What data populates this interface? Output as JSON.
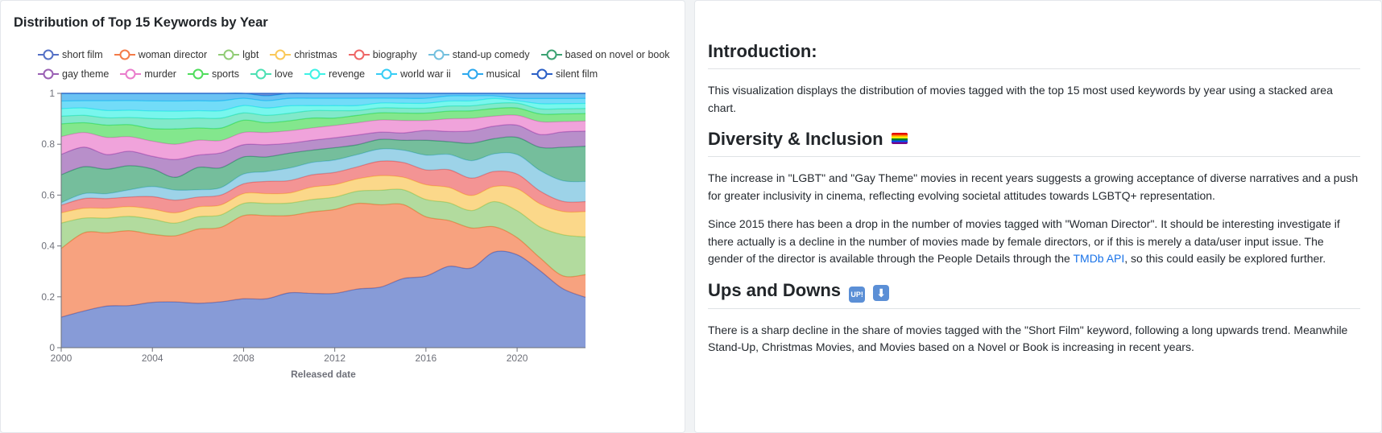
{
  "chart_title": "Distribution of Top 15 Keywords by Year",
  "chart_data": {
    "type": "area",
    "stacked": true,
    "normalized": true,
    "title": "Distribution of Top 15 Keywords by Year",
    "xlabel": "Released date",
    "ylabel": "",
    "xlim": [
      2000,
      2023
    ],
    "ylim": [
      0,
      1
    ],
    "x_ticks": [
      "2000",
      "2004",
      "2008",
      "2012",
      "2016",
      "2020"
    ],
    "y_ticks": [
      "0",
      "0.2",
      "0.4",
      "0.6",
      "0.8",
      "1"
    ],
    "legend_position": "top",
    "x": [
      2000,
      2001,
      2002,
      2003,
      2004,
      2005,
      2006,
      2007,
      2008,
      2009,
      2010,
      2011,
      2012,
      2013,
      2014,
      2015,
      2016,
      2017,
      2018,
      2019,
      2020,
      2021,
      2022,
      2023
    ],
    "series": [
      {
        "name": "short film",
        "color": "#5470c6",
        "values": [
          0.12,
          0.15,
          0.17,
          0.175,
          0.18,
          0.18,
          0.18,
          0.185,
          0.2,
          0.2,
          0.22,
          0.22,
          0.22,
          0.24,
          0.25,
          0.28,
          0.29,
          0.32,
          0.32,
          0.38,
          0.38,
          0.3,
          0.23,
          0.2
        ]
      },
      {
        "name": "woman director",
        "color": "#f47b48",
        "values": [
          0.27,
          0.32,
          0.3,
          0.31,
          0.27,
          0.26,
          0.3,
          0.3,
          0.34,
          0.34,
          0.31,
          0.33,
          0.34,
          0.35,
          0.34,
          0.3,
          0.24,
          0.18,
          0.16,
          0.1,
          0.07,
          0.05,
          0.05,
          0.09
        ]
      },
      {
        "name": "lgbt",
        "color": "#91cc75",
        "values": [
          0.1,
          0.06,
          0.06,
          0.06,
          0.06,
          0.05,
          0.05,
          0.05,
          0.05,
          0.05,
          0.05,
          0.05,
          0.05,
          0.05,
          0.06,
          0.06,
          0.07,
          0.07,
          0.07,
          0.1,
          0.11,
          0.12,
          0.16,
          0.15
        ]
      },
      {
        "name": "christmas",
        "color": "#fac858",
        "values": [
          0.04,
          0.04,
          0.04,
          0.04,
          0.04,
          0.04,
          0.04,
          0.04,
          0.04,
          0.04,
          0.04,
          0.05,
          0.05,
          0.05,
          0.06,
          0.05,
          0.06,
          0.06,
          0.06,
          0.06,
          0.09,
          0.09,
          0.09,
          0.1
        ]
      },
      {
        "name": "biography",
        "color": "#ee6666",
        "values": [
          0.03,
          0.04,
          0.04,
          0.04,
          0.05,
          0.05,
          0.04,
          0.04,
          0.04,
          0.05,
          0.05,
          0.05,
          0.05,
          0.05,
          0.06,
          0.06,
          0.06,
          0.07,
          0.07,
          0.06,
          0.06,
          0.05,
          0.04,
          0.04
        ]
      },
      {
        "name": "stand-up comedy",
        "color": "#73c0de",
        "values": [
          0.01,
          0.02,
          0.02,
          0.03,
          0.04,
          0.04,
          0.03,
          0.03,
          0.04,
          0.04,
          0.05,
          0.05,
          0.05,
          0.05,
          0.05,
          0.05,
          0.06,
          0.06,
          0.07,
          0.07,
          0.08,
          0.08,
          0.08,
          0.08
        ]
      },
      {
        "name": "based on novel or book",
        "color": "#3ba272",
        "values": [
          0.11,
          0.11,
          0.1,
          0.1,
          0.07,
          0.05,
          0.09,
          0.08,
          0.07,
          0.06,
          0.06,
          0.05,
          0.05,
          0.04,
          0.04,
          0.04,
          0.06,
          0.05,
          0.07,
          0.06,
          0.07,
          0.09,
          0.13,
          0.14
        ]
      },
      {
        "name": "gay theme",
        "color": "#9a60b4",
        "values": [
          0.08,
          0.08,
          0.06,
          0.06,
          0.05,
          0.07,
          0.05,
          0.06,
          0.05,
          0.05,
          0.04,
          0.04,
          0.04,
          0.04,
          0.03,
          0.03,
          0.04,
          0.04,
          0.05,
          0.05,
          0.05,
          0.05,
          0.06,
          0.06
        ]
      },
      {
        "name": "murder",
        "color": "#ea7ccc",
        "values": [
          0.07,
          0.06,
          0.07,
          0.06,
          0.06,
          0.06,
          0.06,
          0.05,
          0.05,
          0.05,
          0.05,
          0.05,
          0.05,
          0.05,
          0.05,
          0.05,
          0.04,
          0.05,
          0.05,
          0.04,
          0.04,
          0.05,
          0.04,
          0.04
        ]
      },
      {
        "name": "sports",
        "color": "#4fdd5c",
        "values": [
          0.05,
          0.04,
          0.05,
          0.05,
          0.05,
          0.06,
          0.05,
          0.05,
          0.05,
          0.04,
          0.04,
          0.04,
          0.03,
          0.03,
          0.03,
          0.03,
          0.03,
          0.03,
          0.03,
          0.03,
          0.03,
          0.03,
          0.03,
          0.03
        ]
      },
      {
        "name": "love",
        "color": "#4ce0b3",
        "values": [
          0.03,
          0.03,
          0.03,
          0.03,
          0.04,
          0.04,
          0.04,
          0.04,
          0.03,
          0.03,
          0.03,
          0.03,
          0.03,
          0.02,
          0.02,
          0.02,
          0.02,
          0.02,
          0.02,
          0.02,
          0.02,
          0.02,
          0.02,
          0.02
        ]
      },
      {
        "name": "revenge",
        "color": "#3ef2e6",
        "values": [
          0.03,
          0.03,
          0.03,
          0.03,
          0.03,
          0.03,
          0.03,
          0.03,
          0.03,
          0.03,
          0.03,
          0.02,
          0.02,
          0.02,
          0.02,
          0.02,
          0.02,
          0.02,
          0.02,
          0.02,
          0.01,
          0.02,
          0.02,
          0.02
        ]
      },
      {
        "name": "world war ii",
        "color": "#36cdf5",
        "values": [
          0.03,
          0.03,
          0.04,
          0.04,
          0.04,
          0.04,
          0.04,
          0.04,
          0.03,
          0.03,
          0.03,
          0.03,
          0.03,
          0.03,
          0.02,
          0.02,
          0.02,
          0.02,
          0.02,
          0.01,
          0.01,
          0.02,
          0.02,
          0.02
        ]
      },
      {
        "name": "musical",
        "color": "#2ba8ee",
        "values": [
          0.03,
          0.03,
          0.03,
          0.03,
          0.03,
          0.03,
          0.03,
          0.03,
          0.02,
          0.02,
          0.02,
          0.02,
          0.02,
          0.02,
          0.02,
          0.02,
          0.02,
          0.01,
          0.01,
          0.01,
          0.02,
          0.02,
          0.02,
          0.02
        ]
      },
      {
        "name": "silent film",
        "color": "#2a5fc6",
        "values": [
          0.0,
          0.0,
          0.0,
          0.0,
          0.0,
          0.0,
          0.0,
          0.0,
          0.0,
          0.01,
          0.0,
          0.0,
          0.0,
          0.0,
          0.0,
          0.0,
          0.0,
          0.0,
          0.0,
          0.0,
          0.0,
          0.0,
          0.0,
          0.0
        ]
      }
    ]
  },
  "article": {
    "intro_heading": "Introduction:",
    "intro_text": "This visualization displays the distribution of movies tagged with the top 15 most used keywords by year using a stacked area chart.",
    "diversity_heading": "Diversity & Inclusion",
    "diversity_p1": "The increase in \"LGBT\" and \"Gay Theme\" movies in recent years suggests a growing acceptance of diverse narratives and a push for greater inclusivity in cinema, reflecting evolving societal attitudes towards LGBTQ+ representation.",
    "diversity_p2_before": "Since 2015 there has been a drop in the number of movies tagged with \"Woman Director\". It should be interesting investigate if there actually is a decline in the number of movies made by female directors, or if this is merely a data/user input issue. The gender of the director is available through the People Details through the ",
    "diversity_p2_link": "TMDb API",
    "diversity_p2_after": ", so this could easily be explored further.",
    "ups_heading": "Ups and Downs",
    "ups_emoji_up": "UP!",
    "ups_emoji_down": "⬇",
    "ups_text": "There is a sharp decline in the share of movies tagged with the \"Short Film\" keyword, following a long upwards trend. Meanwhile Stand-Up, Christmas Movies, and Movies based on a Novel or Book is increasing in recent years."
  }
}
